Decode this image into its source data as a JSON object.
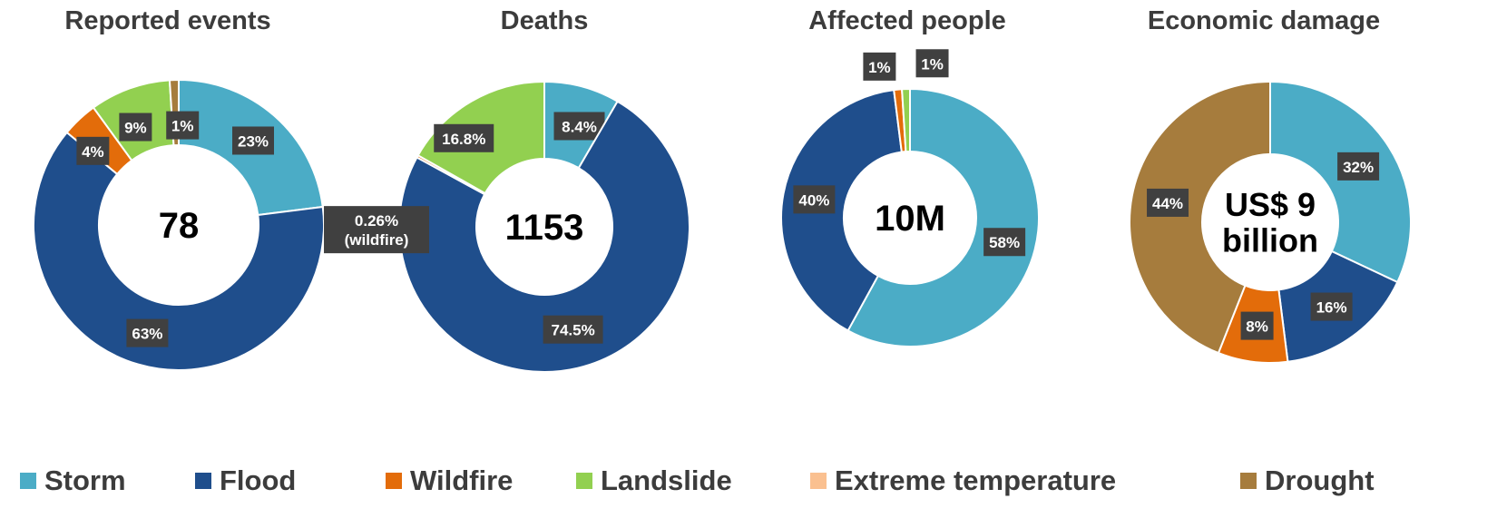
{
  "colors": {
    "Storm": "#4bacc6",
    "Flood": "#1f4e8c",
    "Wildfire": "#e36c0a",
    "Landslide": "#92d050",
    "Extreme temperature": "#fac090",
    "Drought": "#a67c3d"
  },
  "legend": [
    "Storm",
    "Flood",
    "Wildfire",
    "Landslide",
    "Extreme temperature",
    "Drought"
  ],
  "chart_data": [
    {
      "type": "pie",
      "title": "Reported events",
      "center_label": "78",
      "slices": [
        {
          "name": "Storm",
          "value": 23,
          "label": "23%"
        },
        {
          "name": "Flood",
          "value": 63,
          "label": "63%"
        },
        {
          "name": "Wildfire",
          "value": 4,
          "label": "4%"
        },
        {
          "name": "Landslide",
          "value": 9,
          "label": "9%"
        },
        {
          "name": "Drought",
          "value": 1,
          "label": "1%"
        }
      ]
    },
    {
      "type": "pie",
      "title": "Deaths",
      "center_label": "1153",
      "slices": [
        {
          "name": "Storm",
          "value": 8.4,
          "label": "8.4%"
        },
        {
          "name": "Flood",
          "value": 74.5,
          "label": "74.5%"
        },
        {
          "name": "Wildfire",
          "value": 0.26,
          "label": "0.26%\n(wildfire)"
        },
        {
          "name": "Landslide",
          "value": 16.8,
          "label": "16.8%"
        }
      ]
    },
    {
      "type": "pie",
      "title": "Affected people",
      "center_label": "10M",
      "slices": [
        {
          "name": "Storm",
          "value": 58,
          "label": "58%"
        },
        {
          "name": "Flood",
          "value": 40,
          "label": "40%"
        },
        {
          "name": "Wildfire",
          "value": 1,
          "label": "1%"
        },
        {
          "name": "Landslide",
          "value": 1,
          "label": "1%"
        }
      ]
    },
    {
      "type": "pie",
      "title": "Economic damage",
      "center_label": "US$ 9\nbillion",
      "slices": [
        {
          "name": "Storm",
          "value": 32,
          "label": "32%"
        },
        {
          "name": "Flood",
          "value": 16,
          "label": "16%"
        },
        {
          "name": "Wildfire",
          "value": 8,
          "label": "8%"
        },
        {
          "name": "Drought",
          "value": 44,
          "label": "44%"
        }
      ]
    }
  ]
}
